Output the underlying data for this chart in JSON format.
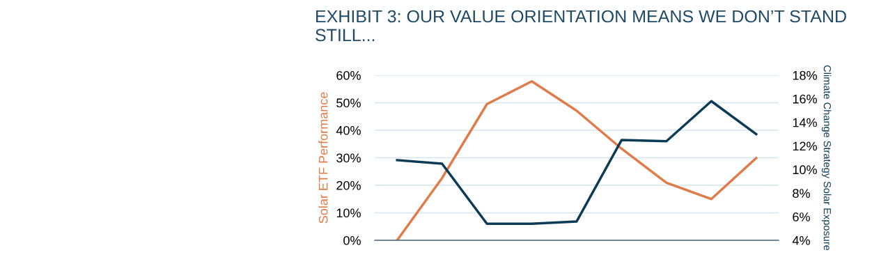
{
  "chart_data": {
    "type": "line",
    "title": "EXHIBIT 3: OUR VALUE ORIENTATION MEANS WE DON’T STAND STILL...",
    "ylabel": "Solar ETF Performance",
    "y2label": "Climate Change Strategy Solar Exposure",
    "categories": [
      null,
      null,
      null,
      null,
      null,
      null,
      null,
      null,
      null
    ],
    "series": [
      {
        "color": "#e07b4a",
        "values": [
          0,
          22.6,
          49.5,
          57.8,
          47.1,
          33.3,
          20.9,
          15.0,
          29.9
        ]
      },
      {
        "color": "#0c3b57",
        "axis": "y2",
        "values": [
          10.8,
          10.5,
          5.4,
          5.4,
          5.6,
          12.5,
          12.4,
          15.8,
          13.0
        ]
      }
    ],
    "ylim": [
      0,
      60
    ],
    "yticks": [
      {
        "value": 0,
        "label": "0%"
      },
      {
        "value": 10,
        "label": "10%"
      },
      {
        "value": 20,
        "label": "20%"
      },
      {
        "value": 30,
        "label": "30%"
      },
      {
        "value": 40,
        "label": "40%"
      },
      {
        "value": 50,
        "label": "50%"
      },
      {
        "value": 60,
        "label": "60%"
      }
    ],
    "y2lim": [
      4,
      18
    ],
    "y2ticks": [
      {
        "value": 4,
        "label": "4%"
      },
      {
        "value": 6,
        "label": "6%"
      },
      {
        "value": 8,
        "label": "8%"
      },
      {
        "value": 10,
        "label": "10%"
      },
      {
        "value": 12,
        "label": "12%"
      },
      {
        "value": 14,
        "label": "14%"
      },
      {
        "value": 16,
        "label": "16%"
      },
      {
        "value": 18,
        "label": "18%"
      }
    ],
    "grid": "y",
    "line_style": "solid"
  }
}
